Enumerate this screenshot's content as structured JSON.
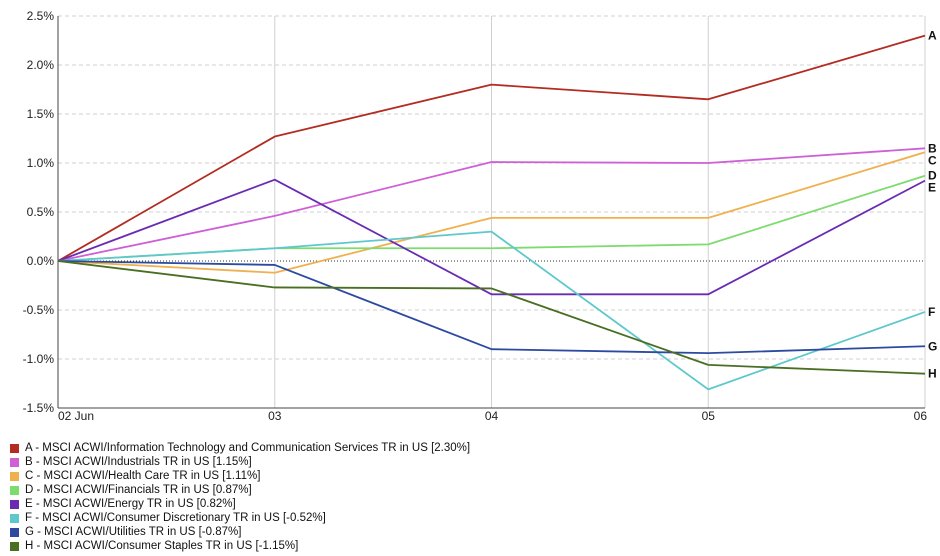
{
  "chart_data": {
    "type": "line",
    "x": [
      "02 Jun",
      "03",
      "04",
      "05",
      "06"
    ],
    "ylim": [
      -1.5,
      2.5
    ],
    "yticks": [
      -1.5,
      -1.0,
      -0.5,
      0.0,
      0.5,
      1.0,
      1.5,
      2.0,
      2.5
    ],
    "ytick_labels": [
      "-1.5%",
      "-1.0%",
      "-0.5%",
      "0.0%",
      "0.5%",
      "1.0%",
      "1.5%",
      "2.0%",
      "2.5%"
    ],
    "grid": true,
    "zero_line": "dotted",
    "legend_position": "bottom",
    "series": [
      {
        "key": "A",
        "name": "A - MSCI ACWI/Information Technology and Communication Services TR in US [2.30%]",
        "color": "#b22c22",
        "values": [
          0.0,
          1.27,
          1.8,
          1.65,
          2.3
        ]
      },
      {
        "key": "B",
        "name": "B - MSCI ACWI/Industrials TR in US [1.15%]",
        "color": "#cf5fd6",
        "values": [
          0.0,
          0.46,
          1.01,
          1.0,
          1.15
        ]
      },
      {
        "key": "C",
        "name": "C - MSCI ACWI/Health Care TR in US [1.11%]",
        "color": "#f0b04e",
        "values": [
          0.0,
          -0.12,
          0.44,
          0.44,
          1.11
        ]
      },
      {
        "key": "D",
        "name": "D - MSCI ACWI/Financials TR in US [0.87%]",
        "color": "#7ddc6e",
        "values": [
          0.0,
          0.13,
          0.13,
          0.17,
          0.87
        ]
      },
      {
        "key": "E",
        "name": "E - MSCI ACWI/Energy TR in US [0.82%]",
        "color": "#6a2bb3",
        "values": [
          0.0,
          0.83,
          -0.34,
          -0.34,
          0.82
        ]
      },
      {
        "key": "F",
        "name": "F - MSCI ACWI/Consumer Discretionary TR in US [-0.52%]",
        "color": "#5ec8cc",
        "values": [
          0.0,
          0.13,
          0.3,
          -1.31,
          -0.52
        ]
      },
      {
        "key": "G",
        "name": "G - MSCI ACWI/Utilities TR in US [-0.87%]",
        "color": "#2c4aa0",
        "values": [
          0.0,
          -0.04,
          -0.9,
          -0.94,
          -0.87
        ]
      },
      {
        "key": "H",
        "name": "H - MSCI ACWI/Consumer Staples TR in US [-1.15%]",
        "color": "#4a6e22",
        "values": [
          0.0,
          -0.27,
          -0.28,
          -1.06,
          -1.15
        ]
      }
    ]
  }
}
